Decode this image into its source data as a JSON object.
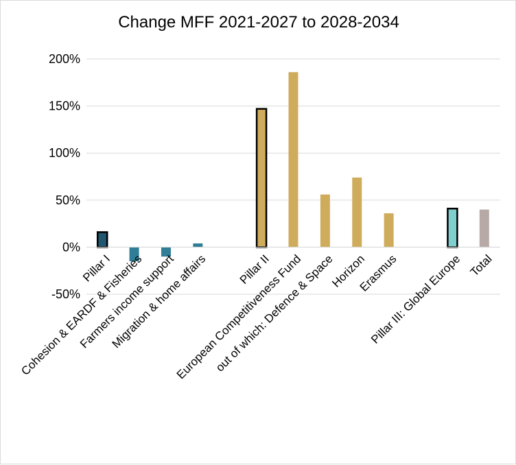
{
  "chart_data": {
    "type": "bar",
    "title": "Change MFF 2021-2027 to 2028-2034",
    "xlabel": "",
    "ylabel": "",
    "ylim": [
      -0.5,
      2.0
    ],
    "yticks": [
      "200%",
      "150%",
      "100%",
      "50%",
      "0%",
      "-50%"
    ],
    "ytick_values": [
      2.0,
      1.5,
      1.0,
      0.5,
      0.0,
      -0.5
    ],
    "grid": true,
    "legend": "none",
    "categories": [
      "Pillar I",
      "Cohesion & EARDF & Fisheries",
      "Farmers income support",
      "Migration & home affairs",
      "",
      "Pillar II",
      "European Competitiveness Fund",
      "out of which: Defence & Space",
      "Horizon",
      "Erasmus",
      "",
      "Pillar III: Global Europe",
      "Total"
    ],
    "values": [
      0.16,
      -0.15,
      -0.1,
      0.04,
      null,
      1.47,
      1.86,
      0.56,
      0.74,
      0.36,
      null,
      0.41,
      0.4
    ],
    "bar_colors": [
      "#1f5670",
      "#2f7d96",
      "#2f7d96",
      "#2f7d96",
      "",
      "#cfac5c",
      "#cfac5c",
      "#cfac5c",
      "#cfac5c",
      "#cfac5c",
      "",
      "#7fcfcf",
      "#b7aaa6"
    ],
    "outlined": [
      true,
      false,
      false,
      false,
      false,
      true,
      false,
      false,
      false,
      false,
      false,
      true,
      false
    ]
  }
}
